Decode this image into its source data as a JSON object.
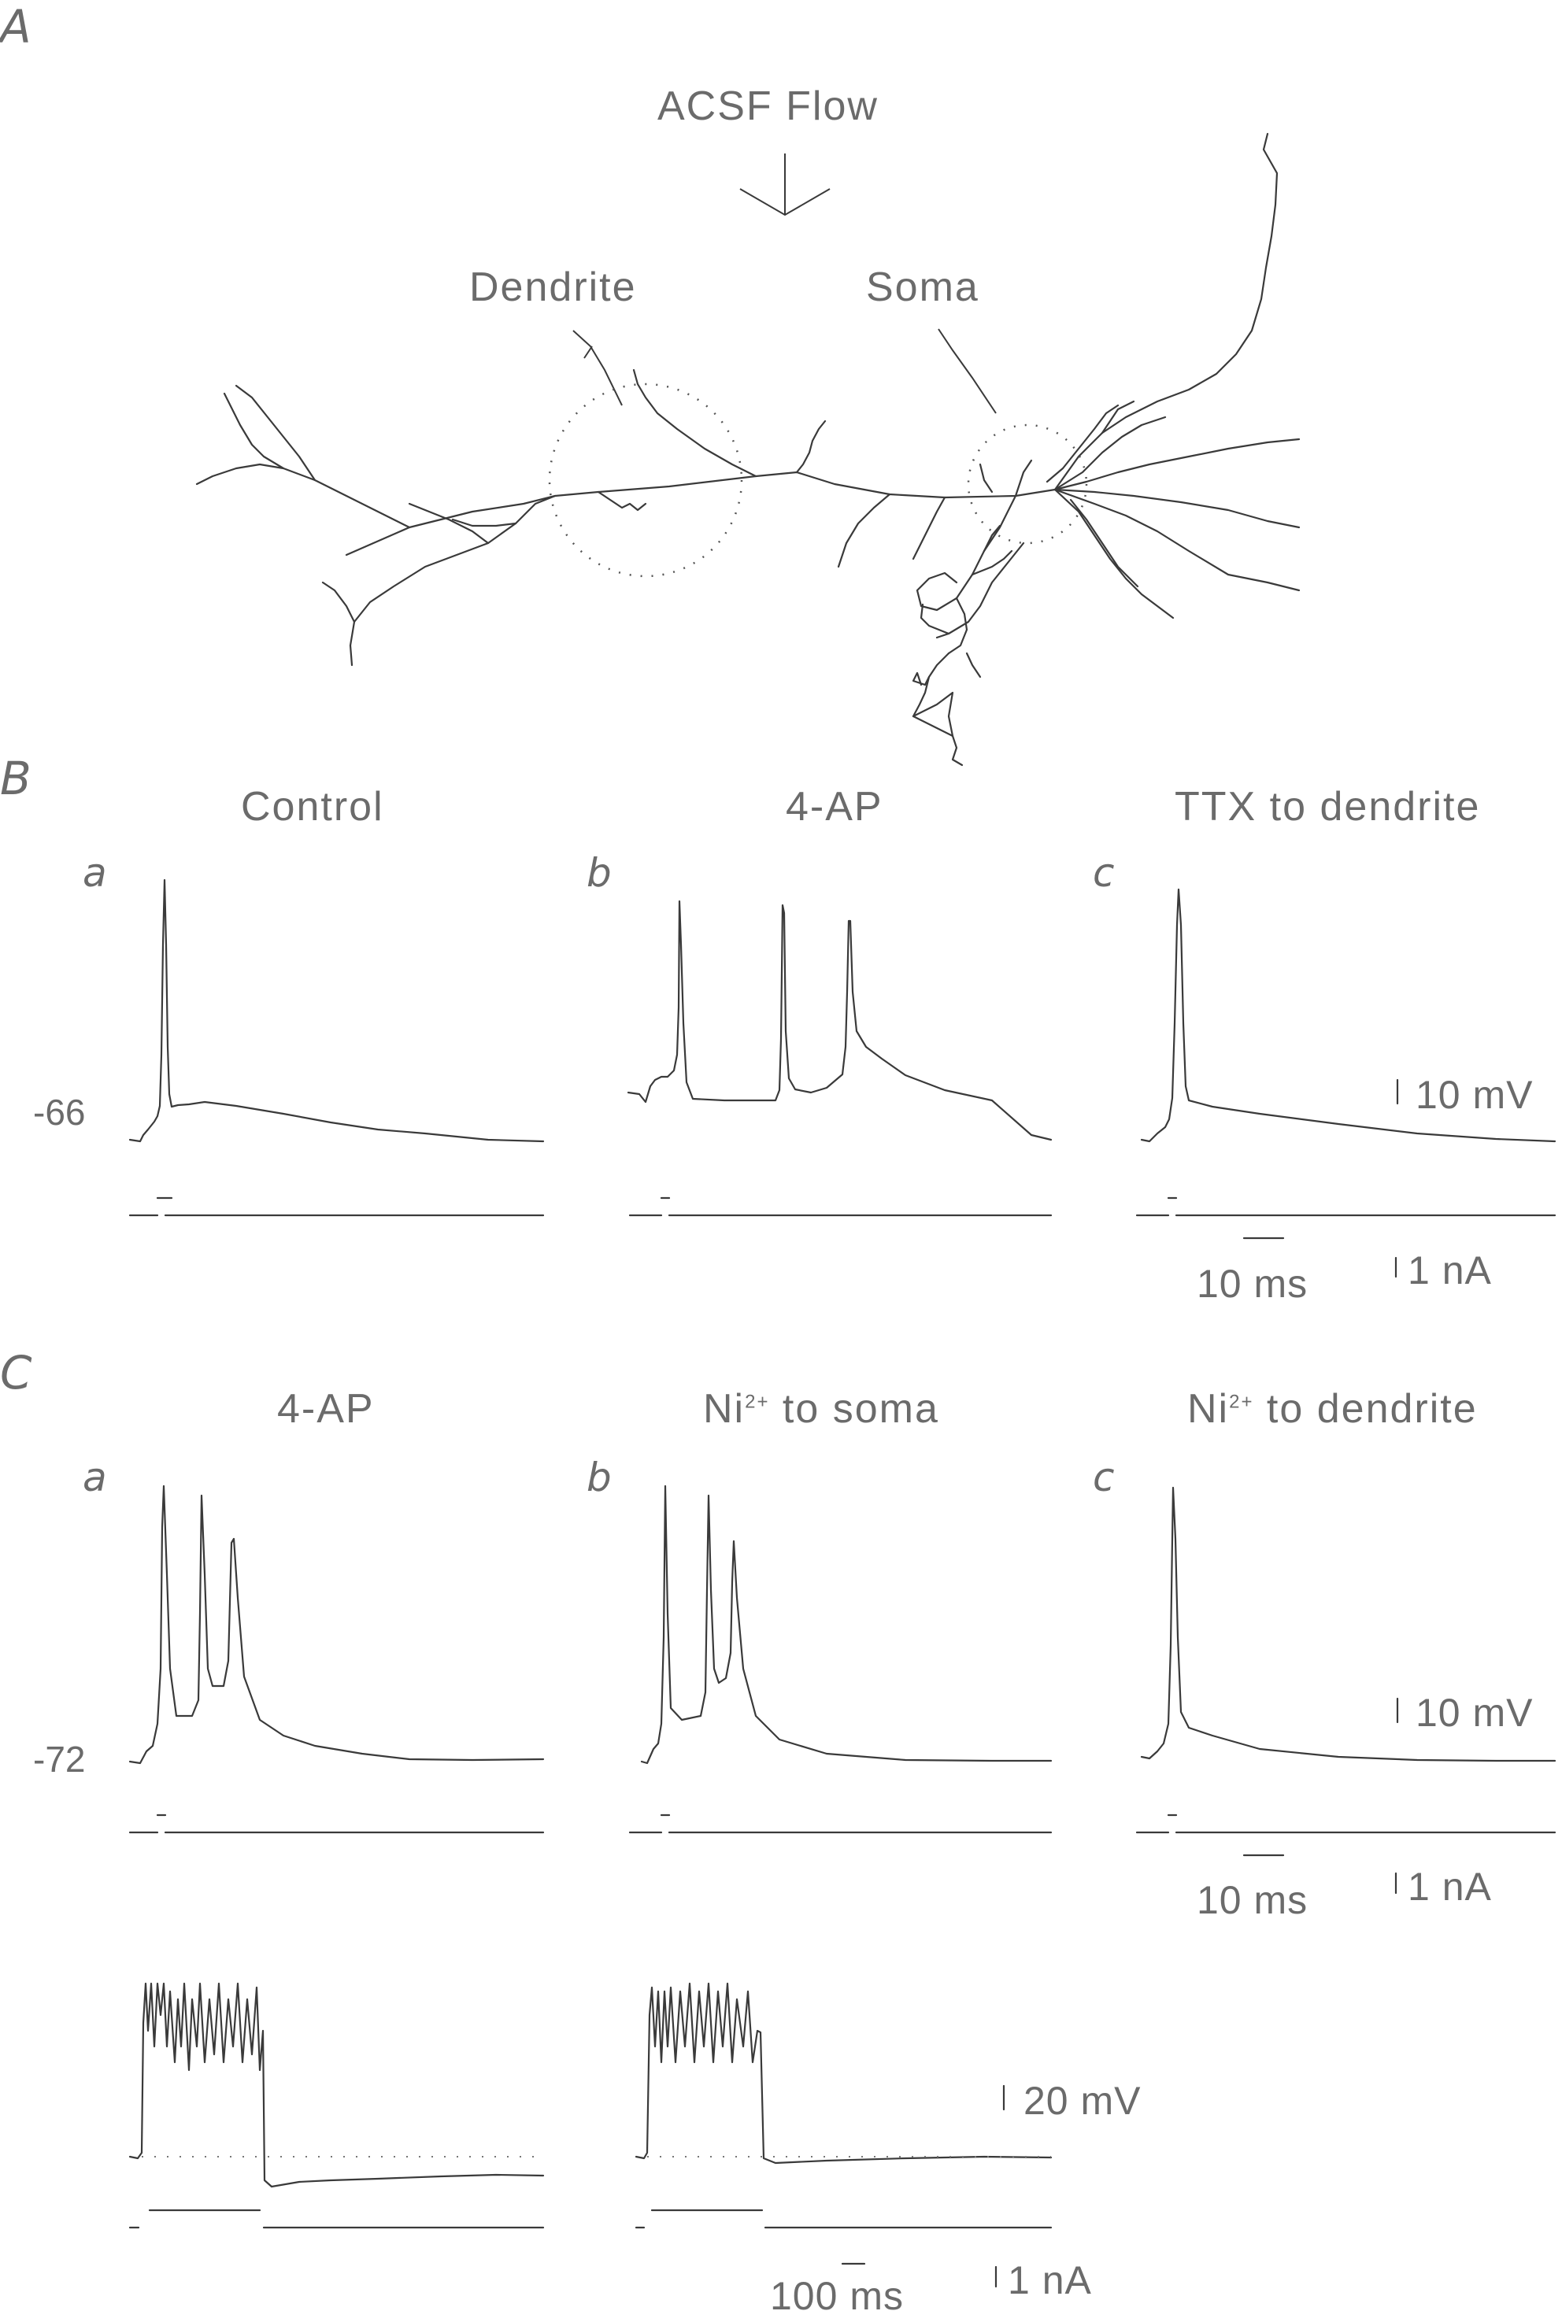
{
  "panel_a": {
    "letter": "A",
    "flow_label": "ACSF Flow",
    "dendrite_label": "Dendrite",
    "soma_label": "Soma"
  },
  "panel_b": {
    "letter": "B",
    "cols": [
      {
        "sub": "a",
        "title": "Control"
      },
      {
        "sub": "b",
        "title": "4-AP"
      },
      {
        "sub": "c",
        "title": "TTX to dendrite"
      }
    ],
    "resting_vm": "-66",
    "scale_v": "10 mV",
    "scale_t": "10 ms",
    "scale_i": "1 nA"
  },
  "panel_c": {
    "letter": "C",
    "cols": [
      {
        "sub": "a",
        "title": "4-AP"
      },
      {
        "sub": "b",
        "title_pre": "Ni",
        "title_sup": "2+",
        "title_post": " to soma"
      },
      {
        "sub": "c",
        "title_pre": "Ni",
        "title_sup": "2+",
        "title_post": " to dendrite"
      }
    ],
    "resting_vm": "-72",
    "scale_v": "10 mV",
    "scale_t": "10 ms",
    "scale_i": "1 nA",
    "long_scale_v": "20 mV",
    "long_scale_t": "100 ms",
    "long_scale_i": "1 nA"
  }
}
